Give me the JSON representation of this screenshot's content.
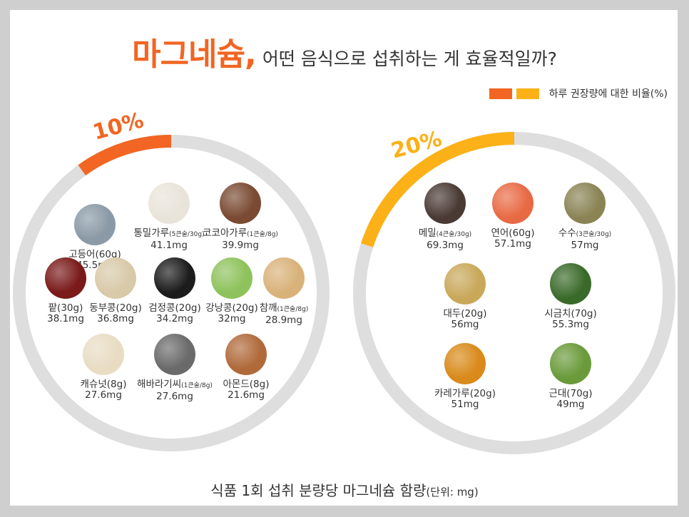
{
  "title": {
    "highlight": "마그네슘,",
    "rest": "어떤 음식으로 섭취하는 게 효율적일까?"
  },
  "legend": {
    "label": "하루 권장량에 대한 비율(%)",
    "colors": [
      "#f26522",
      "#fbb117"
    ]
  },
  "left_circle": {
    "percent_label": "10%",
    "percent_value": 10,
    "color": "#f26522",
    "items": [
      {
        "name": "고등어(60g)",
        "note": "",
        "value": "45.5mg",
        "icon": "mackerel-icon",
        "color": "#8a9aa6"
      },
      {
        "name": "통밀가루",
        "note": "(5큰술/30g)",
        "value": "41.1mg",
        "icon": "wheat-flour-icon",
        "color": "#e9e4da"
      },
      {
        "name": "코코아가루",
        "note": "(1큰술/8g)",
        "value": "39.9mg",
        "icon": "cocoa-powder-icon",
        "color": "#7a4a32"
      },
      {
        "name": "팥(30g)",
        "note": "",
        "value": "38.1mg",
        "icon": "red-bean-icon",
        "color": "#7a1a1a"
      },
      {
        "name": "동부콩(20g)",
        "note": "",
        "value": "36.8mg",
        "icon": "cowpea-icon",
        "color": "#d8c9a8"
      },
      {
        "name": "검정콩(20g)",
        "note": "",
        "value": "34.2mg",
        "icon": "black-bean-icon",
        "color": "#1c1c1c"
      },
      {
        "name": "강낭콩(20g)",
        "note": "",
        "value": "32mg",
        "icon": "kidney-bean-icon",
        "color": "#8ec25c"
      },
      {
        "name": "참깨",
        "note": "(1큰술/8g)",
        "value": "28.9mg",
        "icon": "sesame-icon",
        "color": "#d9b27a"
      },
      {
        "name": "캐슈넛(8g)",
        "note": "",
        "value": "27.6mg",
        "icon": "cashew-icon",
        "color": "#e8dcc3"
      },
      {
        "name": "해바라기씨",
        "note": "(1큰술/8g)",
        "value": "27.6mg",
        "icon": "sunflower-seed-icon",
        "color": "#6a6a6a"
      },
      {
        "name": "아몬드(8g)",
        "note": "",
        "value": "21.6mg",
        "icon": "almond-icon",
        "color": "#b06a3a"
      }
    ]
  },
  "right_circle": {
    "percent_label": "20%",
    "percent_value": 20,
    "color": "#fbb117",
    "items": [
      {
        "name": "메밀",
        "note": "(4큰술/30g)",
        "value": "69.3mg",
        "icon": "buckwheat-icon",
        "color": "#4a3a34"
      },
      {
        "name": "연어(60g)",
        "note": "",
        "value": "57.1mg",
        "icon": "salmon-icon",
        "color": "#e86a44"
      },
      {
        "name": "수수",
        "note": "(3큰술/30g)",
        "value": "57mg",
        "icon": "sorghum-icon",
        "color": "#8a8455"
      },
      {
        "name": "대두(20g)",
        "note": "",
        "value": "56mg",
        "icon": "soybean-icon",
        "color": "#c9a85a"
      },
      {
        "name": "시금치(70g)",
        "note": "",
        "value": "55.3mg",
        "icon": "spinach-icon",
        "color": "#3a6a2a"
      },
      {
        "name": "카레가루(20g)",
        "note": "",
        "value": "51mg",
        "icon": "curry-powder-icon",
        "color": "#d98a1a"
      },
      {
        "name": "근대(70g)",
        "note": "",
        "value": "49mg",
        "icon": "chard-icon",
        "color": "#6a9a3a"
      }
    ]
  },
  "footer": {
    "main": "식품 1회 섭취 분량당 마그네슘 함량",
    "unit": "(단위: mg)"
  }
}
